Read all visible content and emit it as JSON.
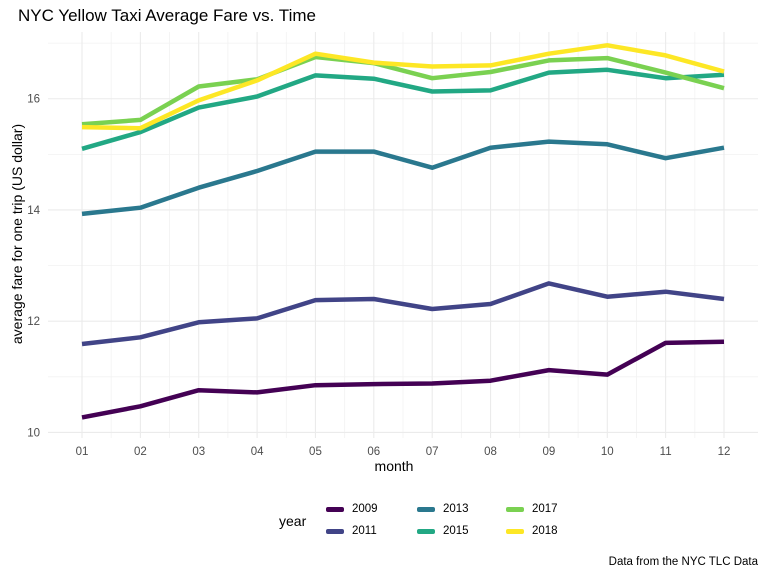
{
  "chart_data": {
    "type": "line",
    "title": "NYC Yellow Taxi Average Fare vs. Time",
    "xlabel": "month",
    "ylabel": "average fare for one trip (US dollar)",
    "caption": "Data from the NYC TLC Data",
    "categories": [
      "01",
      "02",
      "03",
      "04",
      "05",
      "06",
      "07",
      "08",
      "09",
      "10",
      "11",
      "12"
    ],
    "ylim": [
      9.9,
      17.2
    ],
    "yticks": [
      10,
      12,
      14,
      16
    ],
    "grid": true,
    "legend_title": "year",
    "legend_position": "bottom",
    "series": [
      {
        "name": "2009",
        "color": "#440154",
        "values": [
          10.27,
          10.47,
          10.76,
          10.72,
          10.85,
          10.87,
          10.88,
          10.93,
          11.12,
          11.04,
          11.61,
          11.63
        ]
      },
      {
        "name": "2011",
        "color": "#414487",
        "values": [
          11.59,
          11.71,
          11.98,
          12.05,
          12.38,
          12.4,
          12.22,
          12.31,
          12.68,
          12.44,
          12.53,
          12.4
        ]
      },
      {
        "name": "2013",
        "color": "#2A788E",
        "values": [
          13.93,
          14.04,
          14.4,
          14.7,
          15.05,
          15.05,
          14.76,
          15.12,
          15.23,
          15.18,
          14.93,
          15.12
        ]
      },
      {
        "name": "2015",
        "color": "#22A884",
        "values": [
          15.1,
          15.4,
          15.84,
          16.04,
          16.42,
          16.36,
          16.13,
          16.15,
          16.47,
          16.52,
          16.37,
          16.43
        ]
      },
      {
        "name": "2017",
        "color": "#7AD151",
        "values": [
          15.54,
          15.62,
          16.22,
          16.35,
          16.75,
          16.64,
          16.37,
          16.48,
          16.69,
          16.73,
          16.47,
          16.19
        ]
      },
      {
        "name": "2018",
        "color": "#FDE725",
        "values": [
          15.49,
          15.47,
          15.97,
          16.33,
          16.81,
          16.65,
          16.58,
          16.6,
          16.81,
          16.96,
          16.78,
          16.49
        ]
      }
    ]
  }
}
